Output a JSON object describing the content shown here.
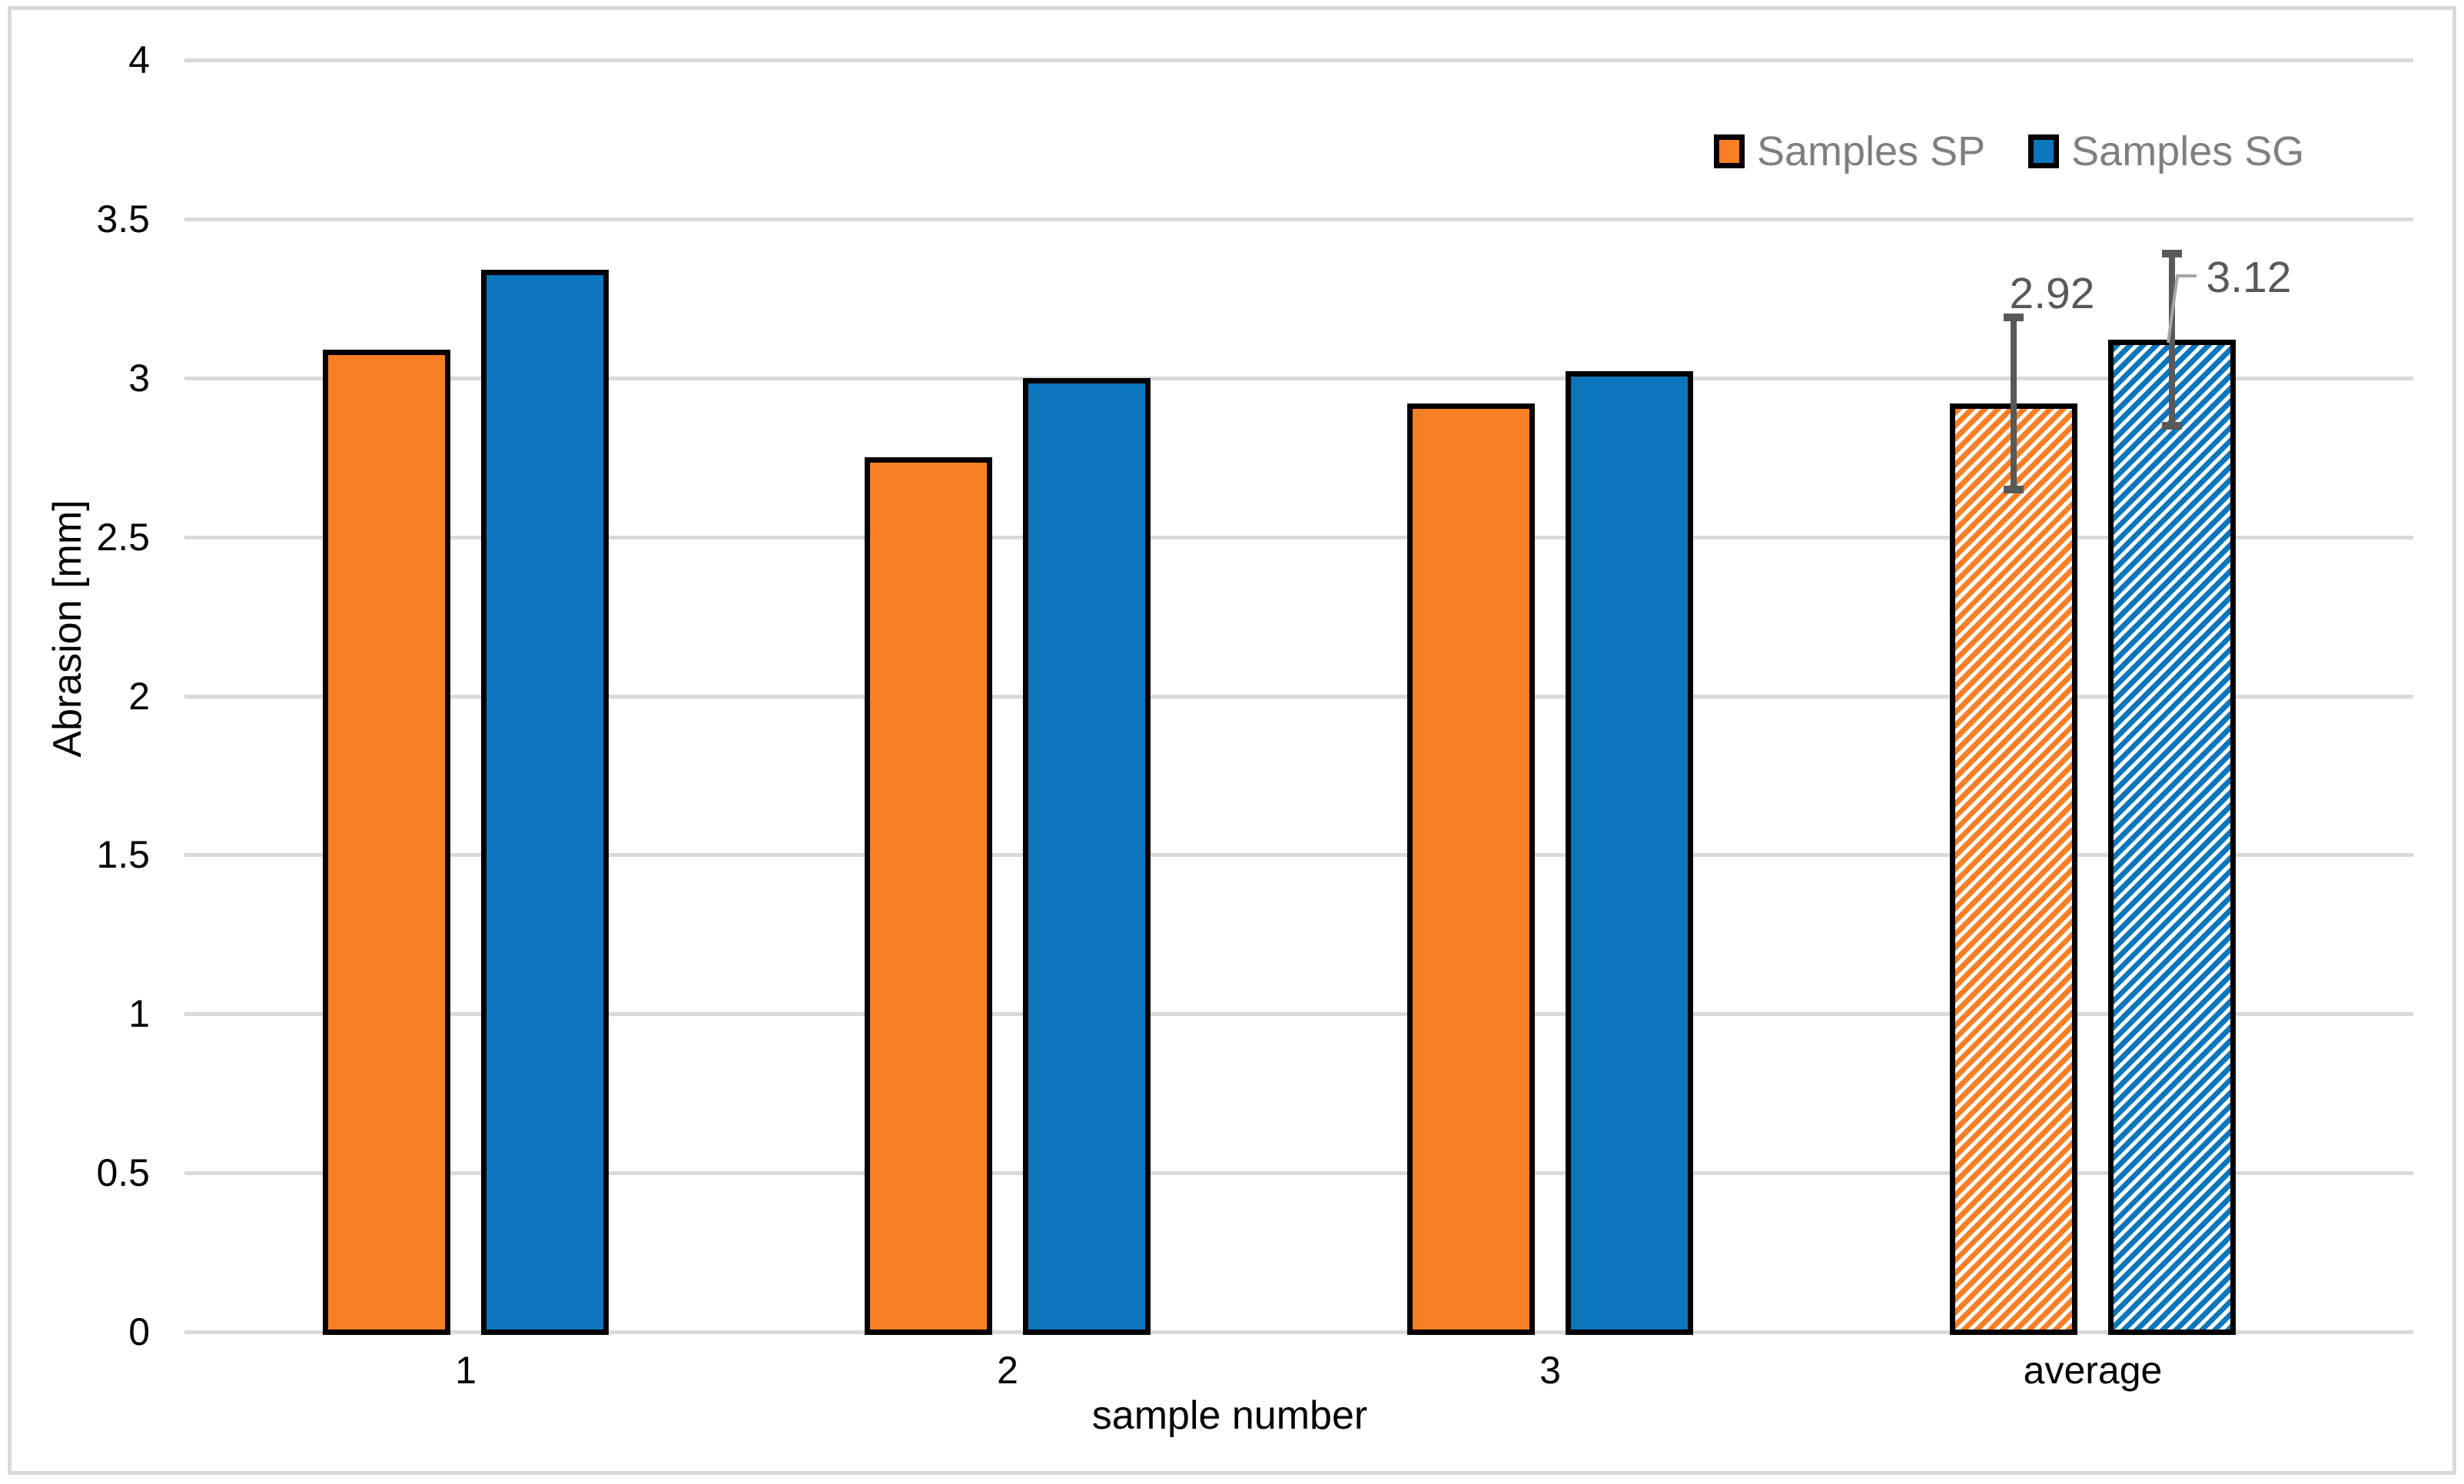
{
  "figure": {
    "background": "#ffffff",
    "border_color": "#d9d9d9"
  },
  "chart_data": {
    "type": "bar",
    "title": "",
    "xlabel": "sample number",
    "ylabel": "Abrasion [mm]",
    "categories": [
      "1",
      "2",
      "3",
      "average"
    ],
    "series": [
      {
        "name": "Samples SP",
        "color": "#F97F25",
        "values": [
          3.09,
          2.75,
          2.92,
          2.92
        ]
      },
      {
        "name": "Samples SG",
        "color": "#0B76BC",
        "values": [
          3.34,
          3.0,
          3.02,
          3.12
        ]
      }
    ],
    "hatched_categories": [
      "average"
    ],
    "error_bars": [
      {
        "category": "average",
        "series": "Samples SP",
        "value": 2.92,
        "plus": 0.27,
        "minus": 0.27
      },
      {
        "category": "average",
        "series": "Samples SG",
        "value": 3.12,
        "plus": 0.27,
        "minus": 0.27
      }
    ],
    "data_labels": [
      {
        "category": "average",
        "series": "Samples SP",
        "text": "2.92",
        "leader_line": false
      },
      {
        "category": "average",
        "series": "Samples SG",
        "text": "3.12",
        "leader_line": true
      }
    ],
    "ylim": [
      0,
      4
    ],
    "ytick_step": 0.5,
    "grid": true,
    "legend_position": "top-right",
    "colors": {
      "gridline": "#d9d9d9",
      "bar_border": "#000000",
      "error_bar": "#595959",
      "data_label": "#595959",
      "leader_line": "#a6a6a6",
      "legend_text": "#7f7f7f",
      "axis_text": "#000000"
    }
  }
}
